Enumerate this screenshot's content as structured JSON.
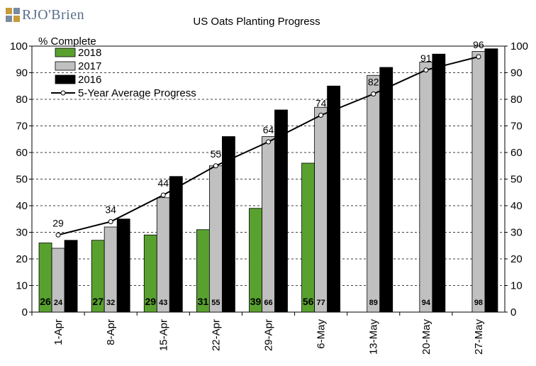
{
  "logo": {
    "text": "RJO'Brien"
  },
  "chart_data": {
    "type": "bar",
    "title": "US Oats Planting Progress",
    "ylabel": "% Complete",
    "ylim": [
      0,
      100
    ],
    "yticks": [
      0,
      10,
      20,
      30,
      40,
      50,
      60,
      70,
      80,
      90,
      100
    ],
    "grid": "horizontal dashed",
    "legend_position": "top-left",
    "categories": [
      "1-Apr",
      "8-Apr",
      "15-Apr",
      "22-Apr",
      "29-Apr",
      "6-May",
      "13-May",
      "20-May",
      "27-May"
    ],
    "series": [
      {
        "name": "2018",
        "kind": "bar",
        "color": "#59a12f",
        "values": [
          26,
          27,
          29,
          31,
          39,
          56,
          null,
          null,
          null
        ],
        "labels": [
          "26",
          "27",
          "29",
          "31",
          "39",
          "56",
          "",
          "",
          ""
        ]
      },
      {
        "name": "2017",
        "kind": "bar",
        "color": "#c0c0c0",
        "values": [
          24,
          32,
          43,
          55,
          66,
          77,
          89,
          94,
          98
        ],
        "labels": [
          "24",
          "32",
          "43",
          "55",
          "66",
          "77",
          "89",
          "94",
          "98"
        ]
      },
      {
        "name": "2016",
        "kind": "bar",
        "color": "#000000",
        "values": [
          27,
          35,
          51,
          66,
          76,
          85,
          92,
          97,
          99
        ],
        "labels": []
      },
      {
        "name": "5-Year Average Progress",
        "kind": "line",
        "color": "#000000",
        "values": [
          29,
          34,
          44,
          55,
          64,
          74,
          82,
          91,
          96
        ],
        "labels": [
          "29",
          "34",
          "44",
          "55",
          "64",
          "74",
          "82",
          "91",
          "96"
        ]
      }
    ]
  }
}
